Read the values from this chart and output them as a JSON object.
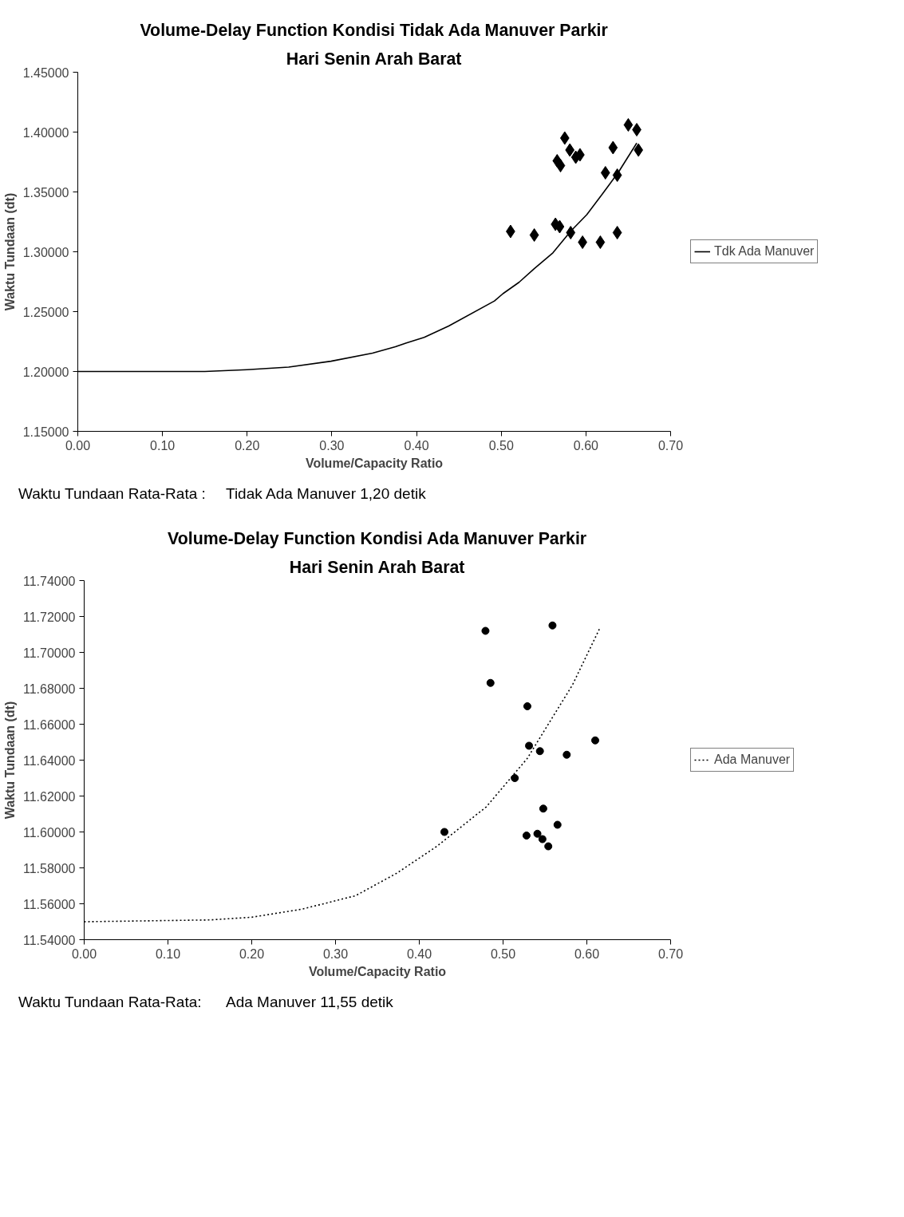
{
  "chart_data": [
    {
      "type": "scatter",
      "title": "Volume-Delay Function Kondisi Tidak Ada Manuver Parkir",
      "subtitle": "Hari Senin Arah Barat",
      "xlabel": "Volume/Capacity Ratio",
      "ylabel": "Waktu Tundaan (dt)",
      "xlim": [
        0,
        0.7
      ],
      "ylim": [
        1.15,
        1.45
      ],
      "xticks": [
        {
          "value": 0,
          "label": "0.00"
        },
        {
          "value": 0.1,
          "label": "0.10"
        },
        {
          "value": 0.2,
          "label": "0.20"
        },
        {
          "value": 0.3,
          "label": "0.30"
        },
        {
          "value": 0.4,
          "label": "0.40"
        },
        {
          "value": 0.5,
          "label": "0.50"
        },
        {
          "value": 0.6,
          "label": "0.60"
        },
        {
          "value": 0.7,
          "label": "0.70"
        }
      ],
      "yticks": [
        {
          "value": 1.15,
          "label": "1.15000"
        },
        {
          "value": 1.2,
          "label": "1.20000"
        },
        {
          "value": 1.25,
          "label": "1.25000"
        },
        {
          "value": 1.3,
          "label": "1.30000"
        },
        {
          "value": 1.35,
          "label": "1.35000"
        },
        {
          "value": 1.4,
          "label": "1.40000"
        },
        {
          "value": 1.45,
          "label": "1.45000"
        }
      ],
      "grid": false,
      "legend": "right",
      "series": [
        {
          "type": "scatter",
          "marker": "diamond",
          "color": "#000000",
          "x": [
            0.511,
            0.539,
            0.564,
            0.569,
            0.582,
            0.596,
            0.617,
            0.637,
            0.575,
            0.581,
            0.566,
            0.57,
            0.588,
            0.593,
            0.632,
            0.623,
            0.637,
            0.65,
            0.66,
            0.662
          ],
          "values": [
            1.317,
            1.314,
            1.323,
            1.321,
            1.316,
            1.308,
            1.308,
            1.316,
            1.395,
            1.385,
            1.376,
            1.372,
            1.379,
            1.381,
            1.387,
            1.366,
            1.364,
            1.406,
            1.402,
            1.385
          ]
        },
        {
          "type": "line",
          "name": "Tdk Ada Manuver",
          "color": "#000000",
          "line_style": "solid",
          "x": [
            0,
            0.15,
            0.2,
            0.249,
            0.299,
            0.348,
            0.375,
            0.388,
            0.409,
            0.438,
            0.492,
            0.502,
            0.521,
            0.539,
            0.561,
            0.582,
            0.601,
            0.62,
            0.639,
            0.66
          ],
          "values": [
            1.2,
            1.2,
            1.2015,
            1.2037,
            1.2086,
            1.2153,
            1.2206,
            1.2239,
            1.2285,
            1.238,
            1.2589,
            1.265,
            1.2745,
            1.2859,
            1.2991,
            1.3172,
            1.331,
            1.3488,
            1.3672,
            1.3908
          ]
        }
      ],
      "annotations": [
        "Waktu Tundaan Rata-Rata :",
        "Tidak Ada Manuver 1,20 detik"
      ]
    },
    {
      "type": "scatter",
      "title": "Volume-Delay Function Kondisi Ada Manuver Parkir",
      "subtitle": "Hari Senin Arah Barat",
      "xlabel": "Volume/Capacity Ratio",
      "ylabel": "Waktu Tundaan (dt)",
      "xlim": [
        0,
        0.7
      ],
      "ylim": [
        11.54,
        11.74
      ],
      "xticks": [
        {
          "value": 0,
          "label": "0.00"
        },
        {
          "value": 0.1,
          "label": "0.10"
        },
        {
          "value": 0.2,
          "label": "0.20"
        },
        {
          "value": 0.3,
          "label": "0.30"
        },
        {
          "value": 0.4,
          "label": "0.40"
        },
        {
          "value": 0.5,
          "label": "0.50"
        },
        {
          "value": 0.6,
          "label": "0.60"
        },
        {
          "value": 0.7,
          "label": "0.70"
        }
      ],
      "yticks": [
        {
          "value": 11.54,
          "label": "11.54000"
        },
        {
          "value": 11.56,
          "label": "11.56000"
        },
        {
          "value": 11.58,
          "label": "11.58000"
        },
        {
          "value": 11.6,
          "label": "11.60000"
        },
        {
          "value": 11.62,
          "label": "11.62000"
        },
        {
          "value": 11.64,
          "label": "11.64000"
        },
        {
          "value": 11.66,
          "label": "11.66000"
        },
        {
          "value": 11.68,
          "label": "11.68000"
        },
        {
          "value": 11.7,
          "label": "11.70000"
        },
        {
          "value": 11.72,
          "label": "11.72000"
        },
        {
          "value": 11.74,
          "label": "11.74000"
        }
      ],
      "grid": false,
      "legend": "right",
      "series": [
        {
          "type": "scatter",
          "marker": "circle",
          "color": "#000000",
          "x": [
            0.479,
            0.485,
            0.529,
            0.531,
            0.544,
            0.559,
            0.576,
            0.61,
            0.514,
            0.43,
            0.548,
            0.528,
            0.541,
            0.547,
            0.554,
            0.565
          ],
          "values": [
            11.712,
            11.683,
            11.67,
            11.648,
            11.645,
            11.715,
            11.643,
            11.651,
            11.63,
            11.6,
            11.613,
            11.598,
            11.599,
            11.596,
            11.592,
            11.604
          ]
        },
        {
          "type": "line",
          "name": "Ada Manuver",
          "color": "#000000",
          "line_style": "dotted",
          "x": [
            0,
            0.15,
            0.2,
            0.26,
            0.324,
            0.373,
            0.421,
            0.48,
            0.529,
            0.55,
            0.583,
            0.616
          ],
          "values": [
            11.55,
            11.551,
            11.5525,
            11.557,
            11.5645,
            11.577,
            11.592,
            11.614,
            11.641,
            11.657,
            11.682,
            11.714
          ]
        }
      ],
      "annotations": [
        "Waktu Tundaan Rata-Rata:",
        "Ada Manuver 11,55 detik"
      ]
    }
  ]
}
